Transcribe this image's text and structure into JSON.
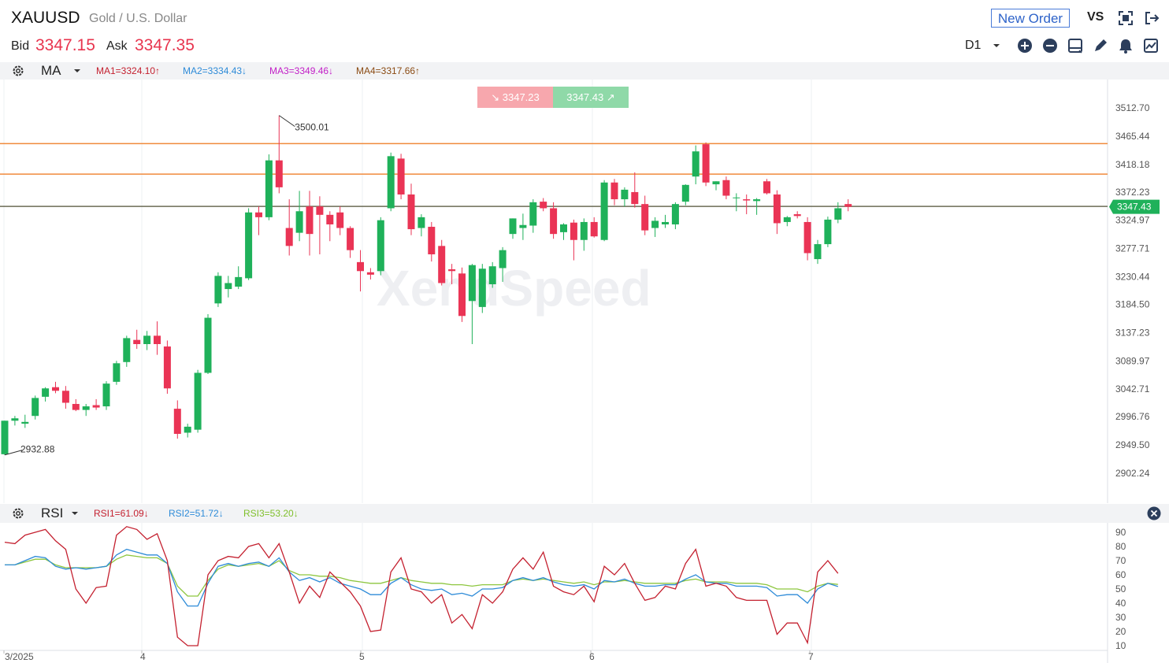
{
  "header": {
    "symbol": "XAUUSD",
    "description": "Gold / U.S. Dollar",
    "bid_label": "Bid",
    "bid_value": "3347.15",
    "ask_label": "Ask",
    "ask_value": "3347.35",
    "new_order_label": "New Order",
    "vs_label": "VS",
    "timeframe": "D1"
  },
  "ma_bar": {
    "name": "MA",
    "values": [
      "MA1=3324.10↑",
      "MA2=3334.43↓",
      "MA3=3349.46↓",
      "MA4=3317.66↑"
    ],
    "colors": [
      "#c4202f",
      "#2e8bd8",
      "#c21fc7",
      "#8a4a12"
    ]
  },
  "rsi_bar": {
    "name": "RSI",
    "values": [
      "RSI1=61.09↓",
      "RSI2=51.72↓",
      "RSI3=53.20↓"
    ],
    "colors": [
      "#c4202f",
      "#2e8bd8",
      "#7fbf2a"
    ]
  },
  "price_tags": {
    "sell": "3347.23",
    "buy": "3347.43"
  },
  "watermark": "XendSpeed",
  "chart_data": {
    "type": "candlestick",
    "y_ticks": [
      "3512.70",
      "3465.44",
      "3418.18",
      "3372.23",
      "3324.97",
      "3277.71",
      "3230.44",
      "3184.50",
      "3137.23",
      "3089.97",
      "3042.71",
      "2996.76",
      "2949.50",
      "2902.24"
    ],
    "current_price_label": "3347.43",
    "high_annotation": "3500.01",
    "low_annotation": "2932.88",
    "horizontal_lines": [
      3453,
      3402,
      3348
    ],
    "x_ticks": [
      "3/2025",
      "4",
      "5",
      "6",
      "7"
    ],
    "rsi_y_ticks": [
      "90",
      "80",
      "70",
      "60",
      "50",
      "40",
      "30",
      "20",
      "10"
    ],
    "candles": [
      [
        2934,
        2990,
        2932.88,
        2990
      ],
      [
        2990,
        2998,
        2982,
        2994
      ],
      [
        2985,
        3000,
        2978,
        2988
      ],
      [
        2998,
        3032,
        2992,
        3028
      ],
      [
        3030,
        3046,
        3022,
        3044
      ],
      [
        3046,
        3055,
        3036,
        3040
      ],
      [
        3040,
        3048,
        3010,
        3020
      ],
      [
        3018,
        3026,
        3006,
        3008
      ],
      [
        3008,
        3018,
        2998,
        3014
      ],
      [
        3016,
        3026,
        3008,
        3012
      ],
      [
        3014,
        3056,
        3008,
        3052
      ],
      [
        3055,
        3090,
        3050,
        3086
      ],
      [
        3088,
        3132,
        3080,
        3128
      ],
      [
        3125,
        3142,
        3110,
        3118
      ],
      [
        3118,
        3140,
        3108,
        3132
      ],
      [
        3132,
        3156,
        3100,
        3118
      ],
      [
        3114,
        3124,
        3035,
        3044
      ],
      [
        3010,
        3024,
        2960,
        2968
      ],
      [
        2970,
        2985,
        2962,
        2980
      ],
      [
        2975,
        3075,
        2970,
        3070
      ],
      [
        3070,
        3168,
        3068,
        3162
      ],
      [
        3186,
        3238,
        3180,
        3232
      ],
      [
        3210,
        3232,
        3196,
        3220
      ],
      [
        3214,
        3248,
        3210,
        3230
      ],
      [
        3228,
        3345,
        3225,
        3338
      ],
      [
        3338,
        3348,
        3300,
        3330
      ],
      [
        3330,
        3435,
        3325,
        3425
      ],
      [
        3425,
        3500.01,
        3370,
        3380
      ],
      [
        3312,
        3360,
        3266,
        3282
      ],
      [
        3304,
        3374,
        3290,
        3340
      ],
      [
        3348,
        3374,
        3266,
        3302
      ],
      [
        3348,
        3365,
        3268,
        3334
      ],
      [
        3334,
        3340,
        3290,
        3318
      ],
      [
        3338,
        3348,
        3300,
        3312
      ],
      [
        3312,
        3315,
        3262,
        3275
      ],
      [
        3255,
        3275,
        3206,
        3240
      ],
      [
        3238,
        3245,
        3226,
        3234
      ],
      [
        3240,
        3330,
        3233,
        3325
      ],
      [
        3345,
        3438,
        3340,
        3432
      ],
      [
        3428,
        3436,
        3360,
        3368
      ],
      [
        3368,
        3386,
        3300,
        3310
      ],
      [
        3312,
        3335,
        3298,
        3330
      ],
      [
        3314,
        3322,
        3256,
        3268
      ],
      [
        3282,
        3292,
        3216,
        3220
      ],
      [
        3243,
        3252,
        3218,
        3240
      ],
      [
        3236,
        3246,
        3155,
        3165
      ],
      [
        3190,
        3252,
        3118,
        3250
      ],
      [
        3180,
        3252,
        3170,
        3244
      ],
      [
        3218,
        3255,
        3212,
        3248
      ],
      [
        3245,
        3280,
        3222,
        3275
      ],
      [
        3302,
        3328,
        3294,
        3328
      ],
      [
        3312,
        3336,
        3292,
        3317
      ],
      [
        3316,
        3360,
        3304,
        3355
      ],
      [
        3356,
        3362,
        3340,
        3345
      ],
      [
        3345,
        3355,
        3294,
        3302
      ],
      [
        3305,
        3320,
        3292,
        3318
      ],
      [
        3321,
        3326,
        3258,
        3292
      ],
      [
        3292,
        3328,
        3274,
        3322
      ],
      [
        3322,
        3330,
        3296,
        3298
      ],
      [
        3292,
        3392,
        3290,
        3388
      ],
      [
        3388,
        3394,
        3350,
        3360
      ],
      [
        3360,
        3380,
        3348,
        3376
      ],
      [
        3372,
        3405,
        3346,
        3352
      ],
      [
        3352,
        3366,
        3300,
        3308
      ],
      [
        3312,
        3330,
        3297,
        3324
      ],
      [
        3318,
        3334,
        3312,
        3322
      ],
      [
        3318,
        3355,
        3310,
        3352
      ],
      [
        3356,
        3385,
        3350,
        3384
      ],
      [
        3398,
        3450,
        3385,
        3440
      ],
      [
        3452,
        3455,
        3382,
        3388
      ],
      [
        3385,
        3390,
        3375,
        3390
      ],
      [
        3392,
        3398,
        3360,
        3366
      ],
      [
        3362,
        3370,
        3340,
        3363
      ],
      [
        3360,
        3368,
        3335,
        3358
      ],
      [
        3357,
        3362,
        3334,
        3360
      ],
      [
        3390,
        3394,
        3368,
        3370
      ],
      [
        3368,
        3375,
        3302,
        3320
      ],
      [
        3322,
        3332,
        3315,
        3330
      ],
      [
        3335,
        3340,
        3328,
        3332
      ],
      [
        3322,
        3330,
        3258,
        3270
      ],
      [
        3260,
        3292,
        3252,
        3285
      ],
      [
        3285,
        3331,
        3280,
        3326
      ],
      [
        3326,
        3355,
        3320,
        3345
      ],
      [
        3352,
        3360,
        3340,
        3347.43
      ]
    ],
    "rsi1": [
      83,
      82,
      88,
      90,
      92,
      84,
      78,
      50,
      40,
      51,
      52,
      88,
      94,
      92,
      85,
      89,
      70,
      16,
      10,
      10,
      60,
      70,
      73,
      72,
      80,
      82,
      72,
      82,
      62,
      40,
      52,
      44,
      62,
      55,
      48,
      38,
      20,
      21,
      62,
      72,
      50,
      48,
      40,
      46,
      26,
      32,
      22,
      46,
      40,
      48,
      64,
      72,
      64,
      76,
      52,
      48,
      46,
      52,
      41,
      66,
      60,
      68,
      54,
      42,
      44,
      52,
      50,
      68,
      78,
      52,
      54,
      52,
      44,
      42,
      42,
      42,
      18,
      26,
      26,
      12,
      62,
      70,
      61
    ],
    "rsi2": [
      67,
      67,
      70,
      73,
      72,
      66,
      64,
      65,
      64,
      65,
      66,
      74,
      78,
      76,
      74,
      74,
      68,
      48,
      38,
      38,
      54,
      66,
      68,
      66,
      68,
      69,
      66,
      72,
      62,
      56,
      58,
      55,
      58,
      54,
      52,
      50,
      46,
      46,
      54,
      58,
      53,
      50,
      49,
      50,
      46,
      47,
      45,
      50,
      50,
      51,
      56,
      58,
      56,
      58,
      55,
      53,
      52,
      53,
      50,
      56,
      55,
      57,
      54,
      52,
      52,
      53,
      53,
      57,
      60,
      55,
      54,
      54,
      52,
      52,
      52,
      51,
      45,
      46,
      46,
      40,
      50,
      54,
      51.72
    ],
    "rsi3": [
      67,
      67,
      69,
      71,
      71,
      67,
      65,
      65,
      65,
      65,
      66,
      71,
      74,
      73,
      72,
      72,
      68,
      52,
      45,
      45,
      56,
      64,
      67,
      66,
      67,
      68,
      66,
      70,
      63,
      60,
      60,
      59,
      59,
      58,
      56,
      55,
      54,
      54,
      56,
      58,
      56,
      55,
      54,
      54,
      53,
      53,
      52,
      53,
      53,
      53,
      56,
      57,
      56,
      57,
      56,
      55,
      54,
      55,
      53,
      55,
      55,
      56,
      55,
      54,
      54,
      54,
      54,
      56,
      57,
      55,
      55,
      55,
      54,
      54,
      54,
      53,
      50,
      50,
      50,
      48,
      52,
      54,
      53.2
    ]
  }
}
